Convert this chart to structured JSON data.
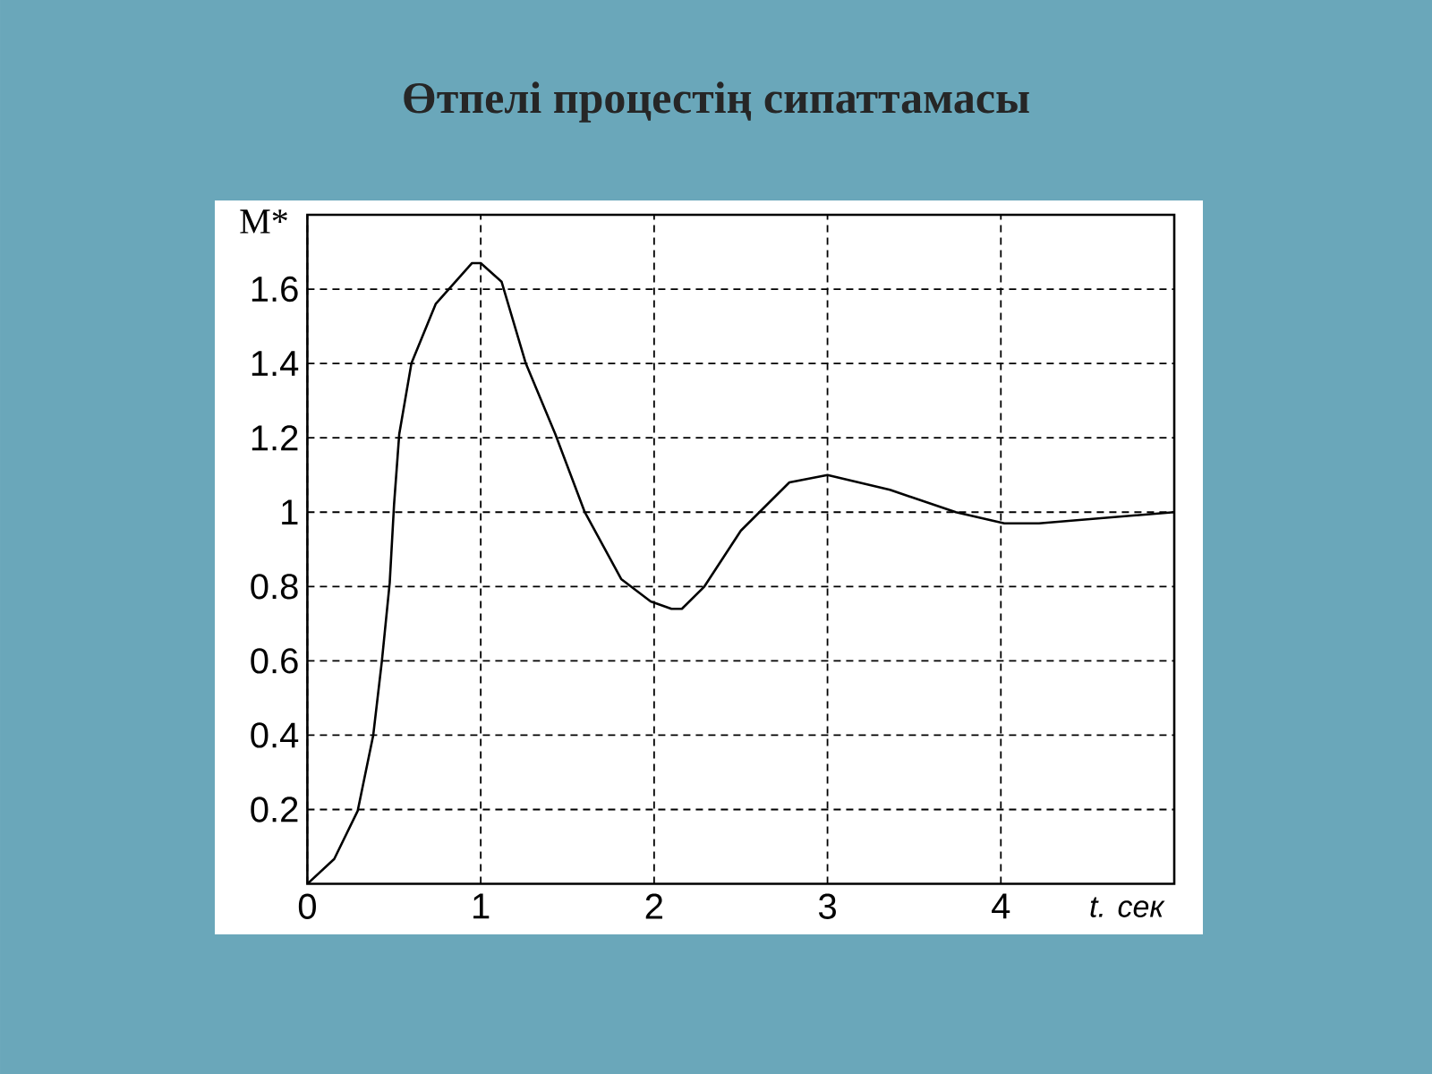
{
  "chart_data": {
    "type": "line",
    "title": "Өтпелі процестің сипаттамасы",
    "xlabel": "t.  сек",
    "ylabel": "M*",
    "series": [
      {
        "color": "#000000",
        "x": [
          0,
          0.155,
          0.29,
          0.38,
          0.43,
          0.475,
          0.5,
          0.53,
          0.6,
          0.74,
          0.95,
          1.0,
          1.12,
          1.26,
          1.43,
          1.6,
          1.81,
          1.98,
          2.1,
          2.16,
          2.29,
          2.5,
          2.78,
          3.0,
          3.36,
          3.74,
          4.02,
          4.22,
          5.0
        ],
        "values": [
          0,
          0.067,
          0.196,
          0.4,
          0.6,
          0.81,
          1.02,
          1.21,
          1.4,
          1.56,
          1.67,
          1.67,
          1.62,
          1.4,
          1.21,
          1.0,
          0.82,
          0.76,
          0.74,
          0.74,
          0.8,
          0.95,
          1.08,
          1.1,
          1.06,
          1.0,
          0.97,
          0.97,
          1.0
        ]
      }
    ],
    "xlim": [
      0,
      5
    ],
    "ylim": [
      0,
      1.8
    ],
    "xticks": [
      0,
      1,
      2,
      3,
      4
    ],
    "yticks": [
      0.2,
      0.4,
      0.6,
      0.8,
      1,
      1.2,
      1.4,
      1.6
    ],
    "grid": true
  }
}
